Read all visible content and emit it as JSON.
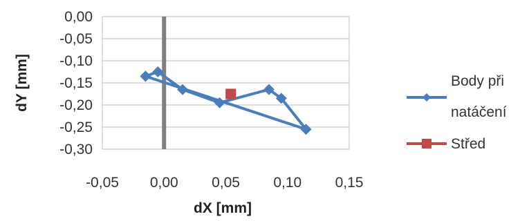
{
  "chart_data": {
    "type": "scatter",
    "xlabel": "dX [mm]",
    "ylabel": "dY [mm]",
    "xlim": [
      -0.05,
      0.15
    ],
    "ylim": [
      -0.3,
      0.0
    ],
    "x_ticks": [
      "-0,05",
      "0,00",
      "0,05",
      "0,10",
      "0,15"
    ],
    "y_ticks": [
      "0,00",
      "-0,05",
      "-0,10",
      "-0,15",
      "-0,20",
      "-0,25",
      "-0,30"
    ],
    "grid": "horizontal",
    "legend_position": "right",
    "series": [
      {
        "name": "Body při natáčení",
        "legend_lines": [
          "Body při",
          "natáčení"
        ],
        "color": "#4a7ebb",
        "marker": "diamond",
        "connected": true,
        "x": [
          -0.015,
          -0.005,
          0.015,
          0.045,
          0.085,
          0.095,
          0.115,
          -0.015
        ],
        "y": [
          -0.135,
          -0.125,
          -0.165,
          -0.195,
          -0.165,
          -0.185,
          -0.255,
          -0.135
        ]
      },
      {
        "name": "Střed",
        "legend_lines": [
          "Střed"
        ],
        "color": "#be4b48",
        "marker": "square",
        "connected": false,
        "x": [
          0.054
        ],
        "y": [
          -0.175
        ]
      }
    ]
  }
}
